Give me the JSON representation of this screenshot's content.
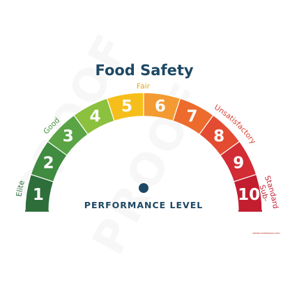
{
  "title": "Food Safety",
  "performance_label": "PERFORMANCE LEVEL",
  "watermark": "PROOF",
  "credit": "sethanandesigns.com",
  "scale": {
    "levels": [
      "1",
      "2",
      "3",
      "4",
      "5",
      "6",
      "7",
      "8",
      "9",
      "10"
    ],
    "colors": [
      "#2d6e3b",
      "#3f8b3f",
      "#5aa446",
      "#8cc03f",
      "#f6be1b",
      "#f39a32",
      "#ec6b2d",
      "#e34c30",
      "#d22c34",
      "#c21e30"
    ]
  },
  "bands": [
    {
      "label": "Elite",
      "color": "#2d6e3b"
    },
    {
      "label": "Good",
      "color": "#4a9a40"
    },
    {
      "label": "Fair",
      "color": "#e2a814"
    },
    {
      "label": "Unsatisfactory",
      "color": "#d9402f"
    },
    {
      "label": "Sub-",
      "color": "#c21e30"
    },
    {
      "label": "Standard",
      "color": "#c21e30"
    }
  ],
  "indicator_color": "#1d4863"
}
